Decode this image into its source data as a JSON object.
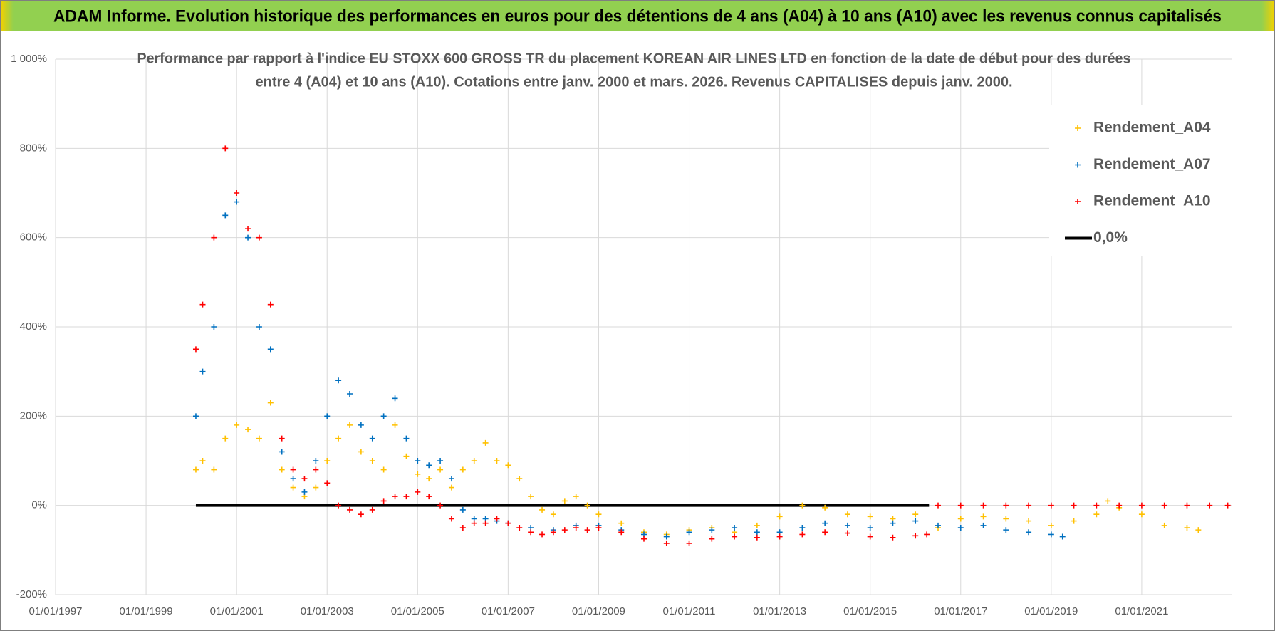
{
  "header": "ADAM Informe. Evolution historique des performances en euros pour des détentions de 4 ans (A04) à 10 ans (A10) avec les revenus connus capitalisés",
  "chart_data": {
    "type": "scatter",
    "title": [
      "Performance par rapport à l'indice EU STOXX 600 GROSS TR  du placement KOREAN AIR LINES LTD en fonction de la date de début pour des durées",
      "entre 4 (A04) et 10 ans (A10). Cotations entre janv. 2000 et mars. 2026. Revenus CAPITALISES depuis janv. 2000."
    ],
    "xlim": [
      1997,
      2023
    ],
    "xticks": [
      {
        "value": 1997,
        "label": "01/01/1997"
      },
      {
        "value": 1999,
        "label": "01/01/1999"
      },
      {
        "value": 2001,
        "label": "01/01/2001"
      },
      {
        "value": 2003,
        "label": "01/01/2003"
      },
      {
        "value": 2005,
        "label": "01/01/2005"
      },
      {
        "value": 2007,
        "label": "01/01/2007"
      },
      {
        "value": 2009,
        "label": "01/01/2009"
      },
      {
        "value": 2011,
        "label": "01/01/2011"
      },
      {
        "value": 2013,
        "label": "01/01/2013"
      },
      {
        "value": 2015,
        "label": "01/01/2015"
      },
      {
        "value": 2017,
        "label": "01/01/2017"
      },
      {
        "value": 2019,
        "label": "01/01/2019"
      },
      {
        "value": 2021,
        "label": "01/01/2021"
      }
    ],
    "ylim": [
      -200,
      1000
    ],
    "yticks": [
      {
        "value": -200,
        "label": "-200%"
      },
      {
        "value": 0,
        "label": "0%"
      },
      {
        "value": 200,
        "label": "200%"
      },
      {
        "value": 400,
        "label": "400%"
      },
      {
        "value": 600,
        "label": "600%"
      },
      {
        "value": 800,
        "label": "800%"
      },
      {
        "value": 1000,
        "label": "1 000%"
      }
    ],
    "grid": true,
    "legend": "top-right",
    "series": [
      {
        "name": "0,0%",
        "color": "#000000",
        "line": true,
        "x": [
          2000.1,
          2016.3
        ],
        "values": [
          0,
          0
        ]
      },
      {
        "name": "Rendement_A04",
        "color": "#ffc000",
        "x": [
          2000.1,
          2000.25,
          2000.5,
          2000.75,
          2001,
          2001.25,
          2001.5,
          2001.75,
          2002,
          2002.25,
          2002.5,
          2002.75,
          2003,
          2003.25,
          2003.5,
          2003.75,
          2004,
          2004.25,
          2004.5,
          2004.75,
          2005,
          2005.25,
          2005.5,
          2005.75,
          2006,
          2006.25,
          2006.5,
          2006.75,
          2007,
          2007.25,
          2007.5,
          2007.75,
          2008,
          2008.25,
          2008.5,
          2008.75,
          2009,
          2009.5,
          2010,
          2010.5,
          2011,
          2011.5,
          2012,
          2012.5,
          2013,
          2013.5,
          2014,
          2014.5,
          2015,
          2015.5,
          2016,
          2016.5,
          2017,
          2017.5,
          2018,
          2018.5,
          2019,
          2019.5,
          2020,
          2020.25,
          2020.5,
          2021,
          2021.5,
          2022,
          2022.25
        ],
        "values": [
          80,
          100,
          80,
          150,
          180,
          170,
          150,
          230,
          80,
          40,
          20,
          40,
          100,
          150,
          180,
          120,
          100,
          80,
          180,
          110,
          70,
          60,
          80,
          40,
          80,
          100,
          140,
          100,
          90,
          60,
          20,
          -10,
          -20,
          10,
          20,
          0,
          -20,
          -40,
          -60,
          -65,
          -55,
          -50,
          -60,
          -45,
          -25,
          0,
          -5,
          -20,
          -25,
          -30,
          -20,
          -50,
          -30,
          -25,
          -30,
          -35,
          -45,
          -35,
          -20,
          10,
          -5,
          -20,
          -45,
          -50,
          -55
        ]
      },
      {
        "name": "Rendement_A07",
        "color": "#0070c0",
        "x": [
          2000.1,
          2000.25,
          2000.5,
          2000.75,
          2001,
          2001.25,
          2001.5,
          2001.75,
          2002,
          2002.25,
          2002.5,
          2002.75,
          2003,
          2003.25,
          2003.5,
          2003.75,
          2004,
          2004.25,
          2004.5,
          2004.75,
          2005,
          2005.25,
          2005.5,
          2005.75,
          2006,
          2006.25,
          2006.5,
          2006.75,
          2007,
          2007.5,
          2008,
          2008.5,
          2009,
          2009.5,
          2010,
          2010.5,
          2011,
          2011.5,
          2012,
          2012.5,
          2013,
          2013.5,
          2014,
          2014.5,
          2015,
          2015.5,
          2016,
          2016.5,
          2017,
          2017.5,
          2018,
          2018.5,
          2019,
          2019.25
        ],
        "values": [
          200,
          300,
          400,
          650,
          680,
          600,
          400,
          350,
          120,
          60,
          30,
          100,
          200,
          280,
          250,
          180,
          150,
          200,
          240,
          150,
          100,
          90,
          100,
          60,
          -10,
          -30,
          -30,
          -35,
          -40,
          -50,
          -55,
          -45,
          -45,
          -55,
          -65,
          -70,
          -60,
          -55,
          -50,
          -60,
          -60,
          -50,
          -40,
          -45,
          -50,
          -40,
          -35,
          -45,
          -50,
          -45,
          -55,
          -60,
          -65,
          -70
        ]
      },
      {
        "name": "Rendement_A10",
        "color": "#ff0000",
        "x": [
          2000.1,
          2000.25,
          2000.5,
          2000.75,
          2001,
          2001.25,
          2001.5,
          2001.75,
          2002,
          2002.25,
          2002.5,
          2002.75,
          2003,
          2003.25,
          2003.5,
          2003.75,
          2004,
          2004.25,
          2004.5,
          2004.75,
          2005,
          2005.25,
          2005.5,
          2005.75,
          2006,
          2006.25,
          2006.5,
          2006.75,
          2007,
          2007.25,
          2007.5,
          2007.75,
          2008,
          2008.25,
          2008.5,
          2008.75,
          2009,
          2009.5,
          2010,
          2010.5,
          2011,
          2011.5,
          2012,
          2012.5,
          2013,
          2013.5,
          2014,
          2014.5,
          2015,
          2015.5,
          2016,
          2016.25,
          2016.5,
          2017,
          2017.5,
          2018,
          2018.5,
          2019,
          2019.5,
          2020,
          2020.5,
          2021,
          2021.5,
          2022,
          2022.5,
          2022.9
        ],
        "values": [
          350,
          450,
          600,
          800,
          700,
          620,
          600,
          450,
          150,
          80,
          60,
          80,
          50,
          0,
          -10,
          -20,
          -10,
          10,
          20,
          20,
          30,
          20,
          0,
          -30,
          -50,
          -40,
          -40,
          -30,
          -40,
          -50,
          -60,
          -65,
          -60,
          -55,
          -50,
          -55,
          -50,
          -60,
          -75,
          -85,
          -85,
          -75,
          -70,
          -72,
          -70,
          -65,
          -60,
          -62,
          -70,
          -72,
          -68,
          -65,
          0,
          0,
          0,
          0,
          0,
          0,
          0,
          0,
          0,
          0,
          0,
          0,
          0,
          0
        ]
      }
    ]
  }
}
